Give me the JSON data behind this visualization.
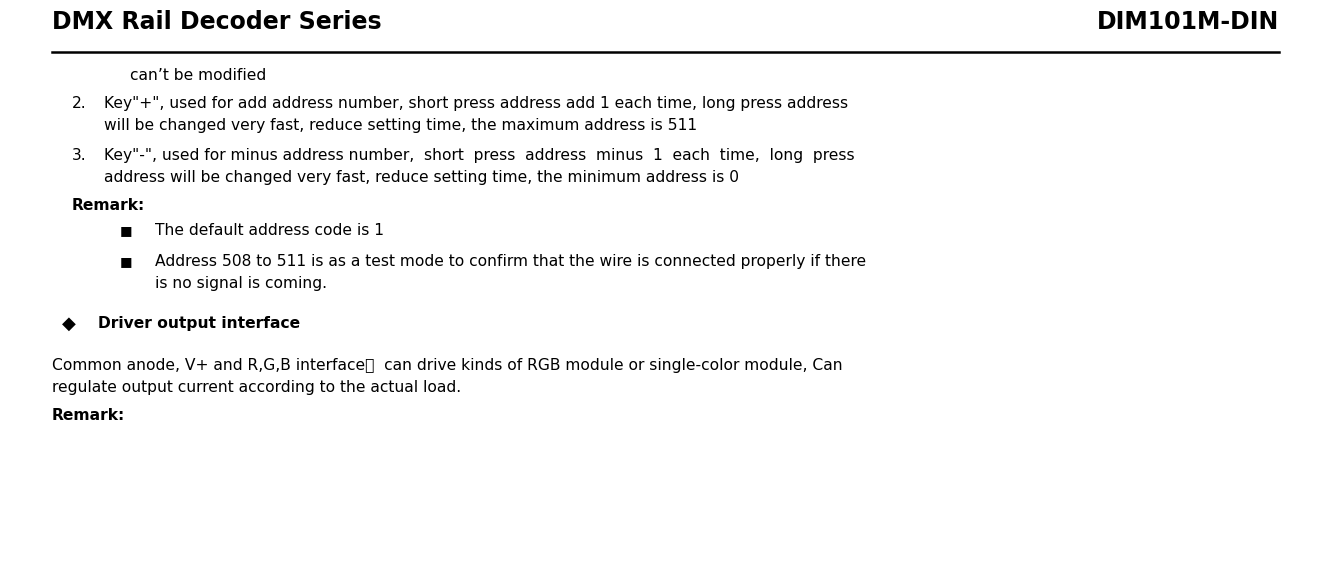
{
  "header_left": "DMX Rail Decoder Series",
  "header_right": "DIM101M-DIN",
  "header_fontsize": 17,
  "background_color": "#ffffff",
  "text_color": "#000000",
  "line_color": "#000000",
  "body_fontsize": 11.2,
  "indent_text": "can’t be modified",
  "item2_line1": "Key\"+\", used for add address number, short press address add 1 each time, long press address",
  "item2_line2": "will be changed very fast, reduce setting time, the maximum address is 511",
  "item3_line1": "Key\"-\", used for minus address number,  short  press  address  minus  1  each  time,  long  press",
  "item3_line2": "address will be changed very fast, reduce setting time, the minimum address is 0",
  "remark1_label": "Remark:",
  "bullet1": "The default address code is 1",
  "bullet2_line1": "Address 508 to 511 is as a test mode to confirm that the wire is connected properly if there",
  "bullet2_line2": "is no signal is coming.",
  "section_label": "Driver output interface",
  "body_line1": "Common anode, V+ and R,G,B interface，  can drive kinds of RGB module or single-color module, Can",
  "body_line2": "regulate output current according to the actual load.",
  "remark2_label": "Remark:",
  "fig_width": 13.31,
  "fig_height": 5.66,
  "dpi": 100
}
